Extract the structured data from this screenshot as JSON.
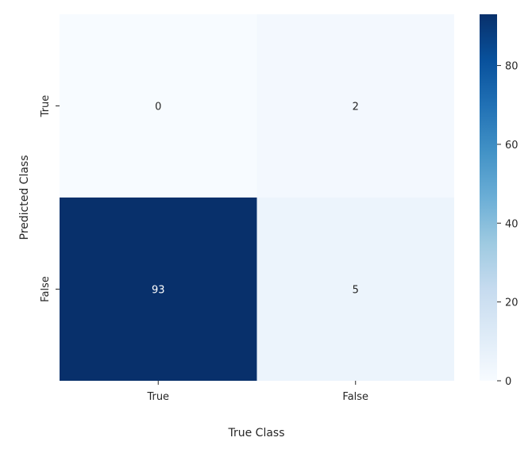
{
  "chart_data": {
    "type": "heatmap",
    "title": "",
    "xlabel": "True Class",
    "ylabel": "Predicted Class",
    "x_categories": [
      "True",
      "False"
    ],
    "y_categories": [
      "True",
      "False"
    ],
    "values": [
      [
        0,
        2
      ],
      [
        93,
        5
      ]
    ],
    "colormap": "Blues",
    "colorbar": {
      "min": 0,
      "max": 93,
      "ticks": [
        "0",
        "20",
        "40",
        "60",
        "80"
      ],
      "tick_values": [
        0,
        20,
        40,
        60,
        80
      ]
    },
    "colors": {
      "low": "#f7fbff",
      "high": "#08306b",
      "text_on_dark": "#ffffff",
      "text_on_light": "#262626"
    }
  }
}
